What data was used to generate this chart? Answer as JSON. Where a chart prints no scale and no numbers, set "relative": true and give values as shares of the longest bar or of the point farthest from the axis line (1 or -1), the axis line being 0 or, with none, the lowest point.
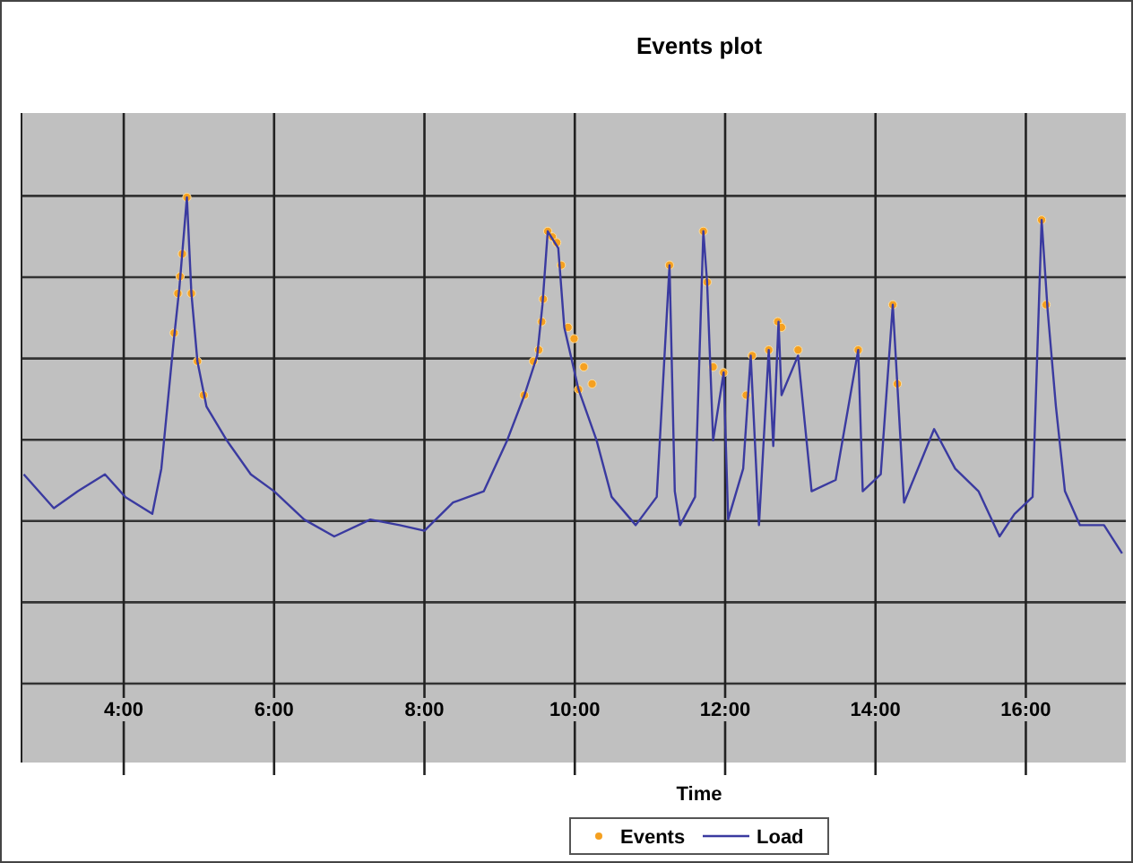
{
  "chart_data": {
    "type": "line",
    "title": "Events plot",
    "xlabel": "Time",
    "relative": true,
    "grid": true,
    "legend": "bottom",
    "xlim": [
      2.64,
      17.33
    ],
    "xticks": [
      {
        "value": 4,
        "label": "4:00"
      },
      {
        "value": 6,
        "label": "6:00"
      },
      {
        "value": 8,
        "label": "8:00"
      },
      {
        "value": 10,
        "label": "10:00"
      },
      {
        "value": 12,
        "label": "12:00"
      },
      {
        "value": 14,
        "label": "14:00"
      },
      {
        "value": 16,
        "label": "16:00"
      }
    ],
    "series": [
      {
        "name": "Events",
        "type": "scatter",
        "marker": "circle",
        "color": "#f5a020",
        "x": [
          4.84,
          4.78,
          4.75,
          4.72,
          4.9,
          4.67,
          4.98,
          5.06,
          9.33,
          9.45,
          9.52,
          9.56,
          9.58,
          9.64,
          9.7,
          9.76,
          9.82,
          9.91,
          9.99,
          10.12,
          10.05,
          10.23,
          11.26,
          11.71,
          11.76,
          11.84,
          11.98,
          12.28,
          12.36,
          12.58,
          12.7,
          12.75,
          12.97,
          13.77,
          14.23,
          14.29,
          16.21,
          16.27
        ],
        "values": [
          1,
          0.9,
          0.86,
          0.83,
          0.83,
          0.76,
          0.71,
          0.65,
          0.65,
          0.71,
          0.73,
          0.78,
          0.82,
          0.94,
          0.93,
          0.92,
          0.88,
          0.77,
          0.75,
          0.7,
          0.66,
          0.67,
          0.88,
          0.94,
          0.85,
          0.7,
          0.69,
          0.65,
          0.72,
          0.73,
          0.78,
          0.77,
          0.73,
          0.73,
          0.81,
          0.67,
          0.96,
          0.81
        ]
      },
      {
        "name": "Load",
        "type": "line",
        "color": "#3a3aa0",
        "x": [
          2.67,
          3.07,
          3.39,
          3.75,
          4.02,
          4.38,
          4.5,
          4.66,
          4.74,
          4.84,
          4.9,
          4.98,
          5.1,
          5.37,
          5.69,
          6.0,
          6.4,
          6.8,
          7.28,
          7.67,
          8.0,
          8.38,
          8.79,
          9.1,
          9.33,
          9.5,
          9.57,
          9.64,
          9.78,
          9.86,
          10.05,
          10.29,
          10.49,
          10.81,
          11.09,
          11.26,
          11.33,
          11.4,
          11.6,
          11.71,
          11.76,
          11.84,
          11.98,
          12.04,
          12.24,
          12.34,
          12.45,
          12.58,
          12.64,
          12.71,
          12.75,
          12.97,
          13.15,
          13.47,
          13.77,
          13.83,
          14.07,
          14.23,
          14.29,
          14.38,
          14.78,
          15.06,
          15.37,
          15.65,
          15.85,
          16.09,
          16.21,
          16.29,
          16.4,
          16.52,
          16.72,
          17.04,
          17.28
        ],
        "values": [
          0.51,
          0.45,
          0.48,
          0.51,
          0.47,
          0.44,
          0.52,
          0.74,
          0.84,
          1,
          0.83,
          0.71,
          0.63,
          0.57,
          0.51,
          0.48,
          0.43,
          0.4,
          0.43,
          0.42,
          0.41,
          0.46,
          0.48,
          0.57,
          0.65,
          0.72,
          0.81,
          0.94,
          0.91,
          0.77,
          0.66,
          0.57,
          0.47,
          0.42,
          0.47,
          0.88,
          0.48,
          0.42,
          0.47,
          0.94,
          0.85,
          0.57,
          0.69,
          0.43,
          0.52,
          0.72,
          0.42,
          0.73,
          0.56,
          0.78,
          0.65,
          0.72,
          0.48,
          0.5,
          0.73,
          0.48,
          0.51,
          0.81,
          0.67,
          0.46,
          0.59,
          0.52,
          0.48,
          0.4,
          0.44,
          0.47,
          0.96,
          0.8,
          0.63,
          0.48,
          0.42,
          0.42,
          0.37
        ]
      }
    ]
  }
}
